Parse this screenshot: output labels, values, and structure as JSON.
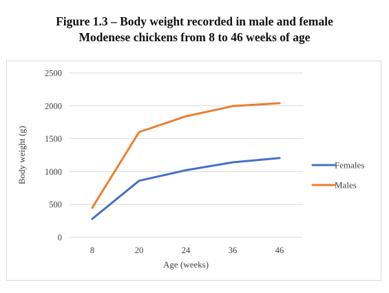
{
  "title": {
    "line1": "Figure 1.3 – Body weight recorded in male and female",
    "line2": "Modenese chickens from 8 to 46 weeks of age"
  },
  "chart_data": {
    "type": "line",
    "title": "",
    "xlabel": "Age (weeks)",
    "ylabel": "Body weight (g)",
    "categories": [
      "8",
      "20",
      "24",
      "36",
      "46"
    ],
    "ylim": [
      0,
      2500
    ],
    "yticks": [
      0,
      500,
      1000,
      1500,
      2000,
      2500
    ],
    "grid": true,
    "legend_position": "right",
    "series": [
      {
        "name": "Females",
        "color": "#4472c4",
        "values": [
          280,
          860,
          1020,
          1140,
          1205
        ]
      },
      {
        "name": "Males",
        "color": "#ed7d31",
        "values": [
          450,
          1600,
          1840,
          1995,
          2040
        ]
      }
    ]
  }
}
